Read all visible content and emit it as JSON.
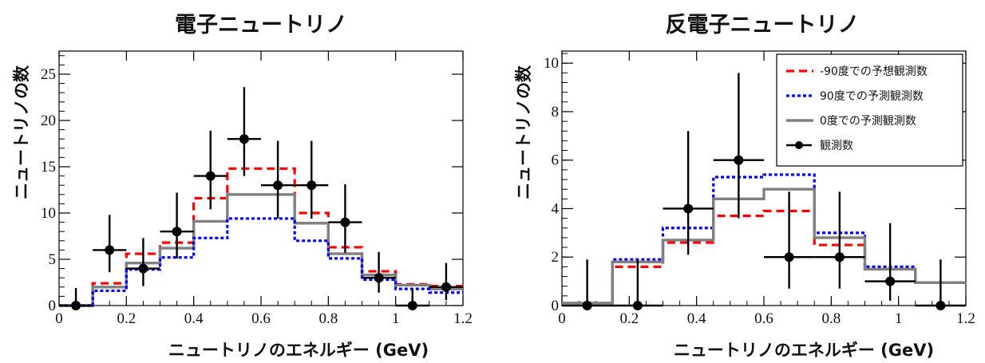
{
  "colors": {
    "pred_m90": "#ff0000",
    "pred_p90": "#0000ff",
    "pred_0": "#808080",
    "observed": "#000000"
  },
  "chart_data": [
    {
      "type": "line",
      "title": "電子ニュートリノ",
      "xlabel": "ニュートリノのエネルギー (GeV)",
      "ylabel": "ニュートリノの数",
      "xlim": [
        0,
        1.2
      ],
      "ylim": [
        0,
        27.5
      ],
      "xticks": [
        0,
        0.2,
        0.4,
        0.6,
        0.8,
        1,
        1.2
      ],
      "xtick_labels": [
        "0",
        "0.2",
        "0.4",
        "0.6",
        "0.8",
        "1",
        "1.2"
      ],
      "yticks": [
        0,
        5,
        10,
        15,
        20,
        25
      ],
      "ytick_labels": [
        "0",
        "5",
        "10",
        "15",
        "20",
        "25"
      ],
      "grid": false,
      "legend": null,
      "bin_edges": [
        0,
        0.1,
        0.2,
        0.3,
        0.4,
        0.5,
        0.7,
        0.8,
        0.9,
        1.0,
        1.1,
        1.2
      ],
      "series": [
        {
          "key": "pred_m90",
          "style": "dashed",
          "values": [
            0,
            2.4,
            5.6,
            6.8,
            11.6,
            14.8,
            10.0,
            6.3,
            3.7,
            2.3,
            2.1
          ]
        },
        {
          "key": "pred_0",
          "style": "solid",
          "values": [
            0,
            2.0,
            4.6,
            6.2,
            9.1,
            12.0,
            8.9,
            5.6,
            3.3,
            2.2,
            1.8
          ]
        },
        {
          "key": "pred_p90",
          "style": "dotted",
          "values": [
            0,
            1.6,
            3.9,
            5.2,
            7.3,
            9.4,
            7.0,
            5.1,
            2.8,
            1.8,
            1.4
          ]
        }
      ],
      "observed": {
        "x": [
          0.05,
          0.15,
          0.25,
          0.35,
          0.45,
          0.55,
          0.65,
          0.75,
          0.85,
          0.95,
          1.05,
          1.15
        ],
        "y": [
          0,
          6,
          4,
          8,
          14,
          18,
          13,
          13,
          9,
          3,
          0,
          2
        ],
        "xerr": [
          0.05,
          0.05,
          0.05,
          0.05,
          0.05,
          0.05,
          0.05,
          0.05,
          0.05,
          0.05,
          0.05,
          0.05
        ],
        "ylow": [
          0,
          3.6,
          2.1,
          5.1,
          10.4,
          14.0,
          9.4,
          9.4,
          5.7,
          1.4,
          0,
          0.6
        ],
        "yhigh": [
          1.9,
          9.8,
          7.3,
          12.2,
          18.9,
          23.6,
          17.8,
          17.8,
          13.1,
          5.8,
          1.9,
          4.6
        ]
      }
    },
    {
      "type": "line",
      "title": "反電子ニュートリノ",
      "xlabel": "ニュートリノのエネルギー (GeV)",
      "ylabel": "ニュートリノの数",
      "xlim": [
        0,
        1.2
      ],
      "ylim": [
        0,
        10.5
      ],
      "xticks": [
        0,
        0.2,
        0.4,
        0.6,
        0.8,
        1,
        1.2
      ],
      "xtick_labels": [
        "0",
        "0.2",
        "0.4",
        "0.6",
        "0.8",
        "1",
        "1.2"
      ],
      "yticks": [
        0,
        2,
        4,
        6,
        8,
        10
      ],
      "ytick_labels": [
        "0",
        "2",
        "4",
        "6",
        "8",
        "10"
      ],
      "grid": false,
      "legend": "top-right",
      "bin_edges": [
        0,
        0.15,
        0.3,
        0.45,
        0.6,
        0.75,
        0.9,
        1.05,
        1.2
      ],
      "series": [
        {
          "key": "pred_m90",
          "style": "dashed",
          "name": "-90度での予想観測数",
          "values": [
            0.1,
            1.6,
            2.6,
            3.7,
            3.9,
            2.5,
            1.5,
            0.95
          ]
        },
        {
          "key": "pred_p90",
          "style": "dotted",
          "name": "90度での予測観測数",
          "values": [
            0.1,
            1.9,
            3.2,
            5.3,
            5.4,
            3.0,
            1.6,
            0.95
          ]
        },
        {
          "key": "pred_0",
          "style": "solid",
          "name": "0度での予測観測数",
          "values": [
            0.1,
            1.8,
            2.7,
            4.4,
            4.8,
            2.8,
            1.5,
            0.95
          ]
        }
      ],
      "observed": {
        "name": "観測数",
        "x": [
          0.075,
          0.225,
          0.375,
          0.525,
          0.675,
          0.825,
          0.975,
          1.125
        ],
        "y": [
          0,
          0,
          4,
          6,
          2,
          2,
          1,
          0
        ],
        "xerr": [
          0.075,
          0.075,
          0.075,
          0.075,
          0.075,
          0.075,
          0.075,
          0.075
        ],
        "ylow": [
          0,
          0,
          2.1,
          3.6,
          0.7,
          0.7,
          0.2,
          0
        ],
        "yhigh": [
          1.9,
          1.9,
          7.2,
          9.6,
          4.7,
          4.7,
          3.4,
          1.9
        ]
      }
    }
  ]
}
